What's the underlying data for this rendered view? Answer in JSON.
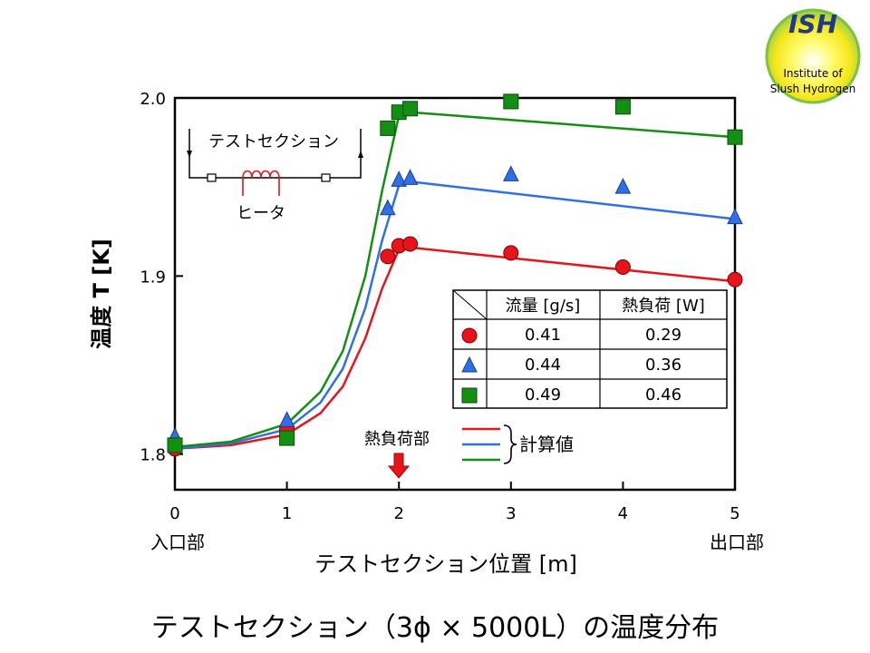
{
  "logo": {
    "text": "ISH",
    "line1": "Institute of",
    "line2": "Slush Hydrogen"
  },
  "slide_title": "テストセクション（3ϕ × 5000L）の温度分布",
  "chart_data": {
    "type": "scatter",
    "xlabel": "テストセクション位置 [m]",
    "ylabel": "温度 T [K]",
    "xlim": [
      0,
      5
    ],
    "ylim": [
      1.78,
      2.0
    ],
    "xticks": [
      0,
      1,
      2,
      3,
      4,
      5
    ],
    "yticks": [
      1.8,
      1.9,
      2.0
    ],
    "xtick_labels": [
      "0",
      "1",
      "2",
      "3",
      "4",
      "5"
    ],
    "ytick_labels": [
      "1.8",
      "1.9",
      "2.0"
    ],
    "x_end_labels": {
      "left": "入口部",
      "right": "出口部"
    },
    "series": [
      {
        "flow": "0.41",
        "heat": "0.29",
        "marker": "circle",
        "color": "#e8141b",
        "points": [
          [
            0,
            1.803
          ],
          [
            1,
            1.814
          ],
          [
            1.9,
            1.911
          ],
          [
            2.0,
            1.917
          ],
          [
            2.1,
            1.918
          ],
          [
            3.0,
            1.913
          ],
          [
            4.0,
            1.905
          ],
          [
            5.0,
            1.898
          ]
        ]
      },
      {
        "flow": "0.44",
        "heat": "0.36",
        "marker": "triangle",
        "color": "#2f6fe8",
        "points": [
          [
            0,
            1.81
          ],
          [
            1,
            1.819
          ],
          [
            1.9,
            1.938
          ],
          [
            2.0,
            1.954
          ],
          [
            2.1,
            1.955
          ],
          [
            3.0,
            1.957
          ],
          [
            4.0,
            1.95
          ],
          [
            5.0,
            1.933
          ]
        ]
      },
      {
        "flow": "0.49",
        "heat": "0.46",
        "marker": "square",
        "color": "#139013",
        "points": [
          [
            0,
            1.805
          ],
          [
            1,
            1.809
          ],
          [
            1.9,
            1.983
          ],
          [
            2.0,
            1.992
          ],
          [
            2.1,
            1.994
          ],
          [
            3.0,
            1.998
          ],
          [
            4.0,
            1.995
          ],
          [
            5.0,
            1.978
          ]
        ]
      }
    ],
    "calculated": [
      {
        "color": "#e8141b",
        "points": [
          [
            0,
            1.803
          ],
          [
            0.5,
            1.805
          ],
          [
            1.0,
            1.811
          ],
          [
            1.3,
            1.823
          ],
          [
            1.5,
            1.838
          ],
          [
            1.7,
            1.865
          ],
          [
            1.85,
            1.893
          ],
          [
            2.0,
            1.915
          ],
          [
            2.1,
            1.916
          ],
          [
            5.0,
            1.897
          ]
        ]
      },
      {
        "color": "#2f6fe8",
        "points": [
          [
            0,
            1.803
          ],
          [
            0.5,
            1.806
          ],
          [
            1.0,
            1.814
          ],
          [
            1.3,
            1.829
          ],
          [
            1.5,
            1.848
          ],
          [
            1.7,
            1.882
          ],
          [
            1.85,
            1.92
          ],
          [
            2.0,
            1.951
          ],
          [
            2.1,
            1.953
          ],
          [
            5.0,
            1.932
          ]
        ]
      },
      {
        "color": "#139013",
        "points": [
          [
            0,
            1.804
          ],
          [
            0.5,
            1.807
          ],
          [
            1.0,
            1.817
          ],
          [
            1.3,
            1.835
          ],
          [
            1.5,
            1.858
          ],
          [
            1.7,
            1.9
          ],
          [
            1.85,
            1.948
          ],
          [
            2.0,
            1.99
          ],
          [
            2.1,
            1.992
          ],
          [
            5.0,
            1.978
          ]
        ]
      }
    ],
    "table": {
      "headers": [
        "流量 [g/s]",
        "熱負荷 [W]"
      ]
    },
    "annotations": {
      "heater_zone": "熱負荷部",
      "calc_label": "計算値",
      "inset_section": "テストセクション",
      "inset_heater": "ヒータ"
    }
  }
}
